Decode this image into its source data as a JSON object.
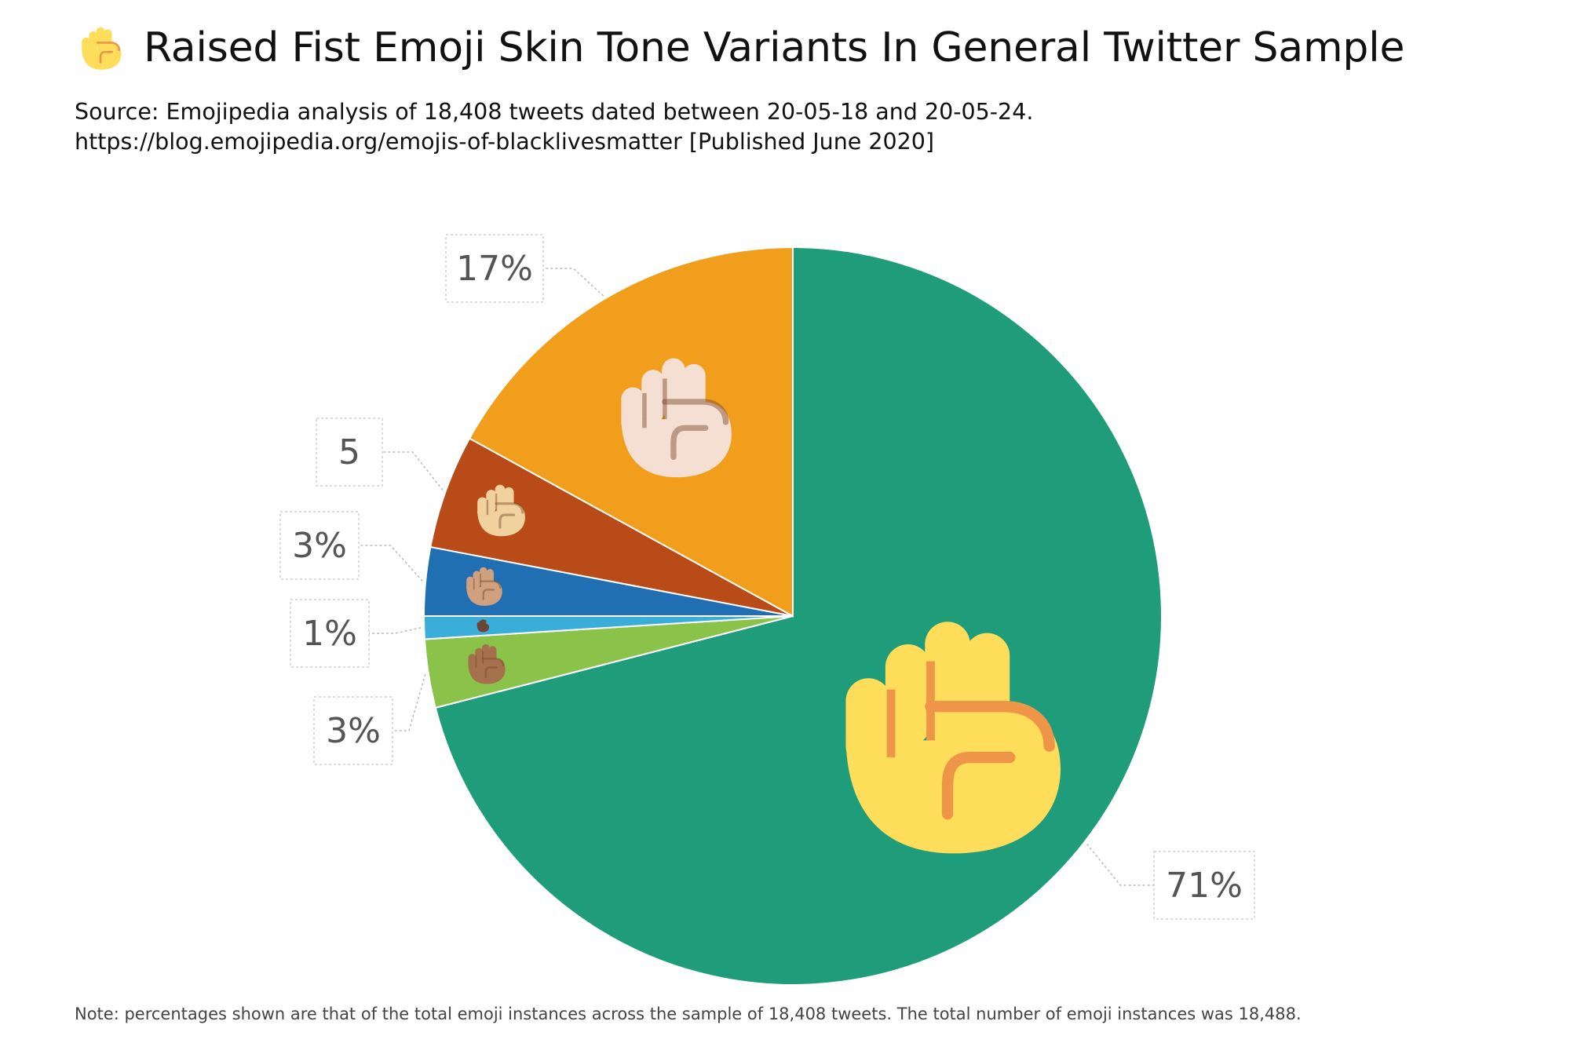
{
  "header": {
    "title": "Raised Fist Emoji Skin Tone Variants In General Twitter Sample",
    "title_icon": "raised-fist-icon",
    "subtitle_line1": "Source: Emojipedia analysis of 18,408 tweets dated between 20-05-18 and 20-05-24.",
    "subtitle_line2": "https://blog.emojipedia.org/emojis-of-blacklivesmatter [Published June 2020]"
  },
  "footnote": "Note: percentages shown are that of the total emoji instances across the sample of 18,408 tweets. The total number of emoji instances was 18,488.",
  "chart_data": {
    "type": "pie",
    "start": "12 o'clock",
    "direction": "clockwise",
    "slices": [
      {
        "label": "71%",
        "value": 71,
        "color": "#1f9c7a",
        "icon": "raised-fist-default-yellow-icon",
        "icon_color": "#fedd5b"
      },
      {
        "label": "3%",
        "value": 3,
        "color": "#8bc34a",
        "icon": "raised-fist-medium-dark-skin-tone-icon",
        "icon_color": "#a5714d"
      },
      {
        "label": "1%",
        "value": 1,
        "color": "#3aaed8",
        "icon": "raised-fist-dark-skin-tone-icon",
        "icon_color": "#6b4535"
      },
      {
        "label": "3%",
        "value": 3,
        "color": "#1f6fb2",
        "icon": "raised-fist-medium-skin-tone-icon",
        "icon_color": "#d0a07f"
      },
      {
        "label": "5",
        "value": 5,
        "color": "#b84b18",
        "icon": "raised-fist-medium-light-skin-tone-icon",
        "icon_color": "#f1d19e"
      },
      {
        "label": "17%",
        "value": 17,
        "color": "#f09e1c",
        "icon": "raised-fist-light-skin-tone-icon",
        "icon_color": "#f5ded2"
      }
    ]
  }
}
